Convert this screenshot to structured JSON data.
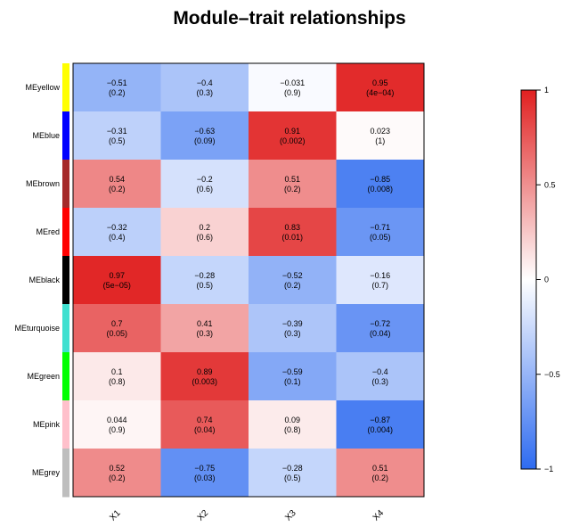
{
  "chart_data": {
    "type": "heatmap",
    "title": "Module–trait relationships",
    "rows": [
      "MEyellow",
      "MEblue",
      "MEbrown",
      "MEred",
      "MEblack",
      "MEturquoise",
      "MEgreen",
      "MEpink",
      "MEgrey"
    ],
    "row_colors": [
      "#FFFF00",
      "#0000FF",
      "#A52A2A",
      "#FF0000",
      "#000000",
      "#40E0D0",
      "#00FF00",
      "#FFC0CB",
      "#BEBEBE"
    ],
    "columns": [
      "X1",
      "X2",
      "X3",
      "X4"
    ],
    "values": [
      [
        -0.51,
        -0.4,
        -0.031,
        0.95
      ],
      [
        -0.31,
        -0.63,
        0.91,
        0.023
      ],
      [
        0.54,
        -0.2,
        0.51,
        -0.85
      ],
      [
        -0.32,
        0.2,
        0.83,
        -0.71
      ],
      [
        0.97,
        -0.28,
        -0.52,
        -0.16
      ],
      [
        0.7,
        0.41,
        -0.39,
        -0.72
      ],
      [
        0.1,
        0.89,
        -0.59,
        -0.4
      ],
      [
        0.044,
        0.74,
        0.09,
        -0.87
      ],
      [
        0.52,
        -0.75,
        -0.28,
        0.51
      ]
    ],
    "cell_labels": [
      [
        "−0.51",
        "−0.4",
        "−0.031",
        "0.95"
      ],
      [
        "−0.31",
        "−0.63",
        "0.91",
        "0.023"
      ],
      [
        "0.54",
        "−0.2",
        "0.51",
        "−0.85"
      ],
      [
        "−0.32",
        "0.2",
        "0.83",
        "−0.71"
      ],
      [
        "0.97",
        "−0.28",
        "−0.52",
        "−0.16"
      ],
      [
        "0.7",
        "0.41",
        "−0.39",
        "−0.72"
      ],
      [
        "0.1",
        "0.89",
        "−0.59",
        "−0.4"
      ],
      [
        "0.044",
        "0.74",
        "0.09",
        "−0.87"
      ],
      [
        "0.52",
        "−0.75",
        "−0.28",
        "0.51"
      ]
    ],
    "pvalues": [
      [
        "(0.2)",
        "(0.3)",
        "(0.9)",
        "(4e−04)"
      ],
      [
        "(0.5)",
        "(0.09)",
        "(0.002)",
        "(1)"
      ],
      [
        "(0.2)",
        "(0.6)",
        "(0.2)",
        "(0.008)"
      ],
      [
        "(0.4)",
        "(0.6)",
        "(0.01)",
        "(0.05)"
      ],
      [
        "(5e−05)",
        "(0.5)",
        "(0.2)",
        "(0.7)"
      ],
      [
        "(0.05)",
        "(0.3)",
        "(0.3)",
        "(0.04)"
      ],
      [
        "(0.8)",
        "(0.003)",
        "(0.1)",
        "(0.3)"
      ],
      [
        "(0.9)",
        "(0.04)",
        "(0.8)",
        "(0.004)"
      ],
      [
        "(0.2)",
        "(0.03)",
        "(0.5)",
        "(0.2)"
      ]
    ],
    "colorscale": {
      "low": "#2E6BF0",
      "mid": "#FFFFFF",
      "high": "#E02020",
      "range": [
        -1,
        1
      ]
    },
    "legend": {
      "ticks": [
        1,
        0.5,
        0,
        -0.5,
        -1
      ],
      "tick_labels": [
        "1",
        "0.5",
        "0",
        "−0.5",
        "−1"
      ],
      "placement": "right"
    }
  }
}
